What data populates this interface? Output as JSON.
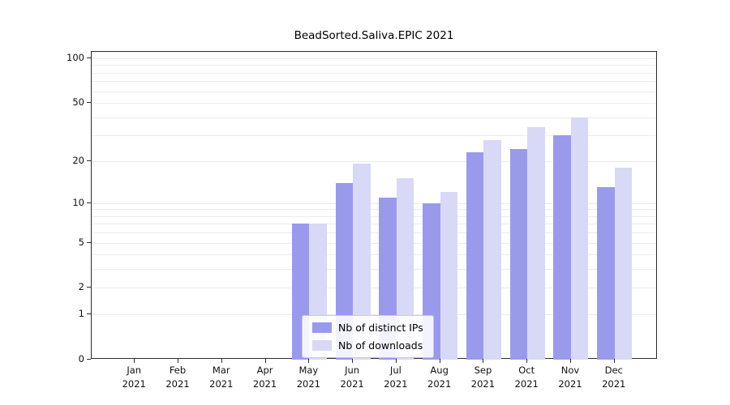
{
  "chart_data": {
    "type": "bar",
    "title": "BeadSorted.Saliva.EPIC 2021",
    "categories": [
      "Jan 2021",
      "Feb 2021",
      "Mar 2021",
      "Apr 2021",
      "May 2021",
      "Jun 2021",
      "Jul 2021",
      "Aug 2021",
      "Sep 2021",
      "Oct 2021",
      "Nov 2021",
      "Dec 2021"
    ],
    "series": [
      {
        "name": "Nb of distinct IPs",
        "color": "#9a9aec",
        "values": [
          0,
          0,
          0,
          0,
          7,
          14,
          11,
          10,
          23,
          24,
          30,
          13
        ]
      },
      {
        "name": "Nb of downloads",
        "color": "#d8d8f7",
        "values": [
          0,
          0,
          0,
          0,
          7,
          19,
          15,
          12,
          28,
          34,
          40,
          18
        ]
      }
    ],
    "yscale": "log10(1+x)",
    "yticks": [
      0,
      1,
      2,
      5,
      10,
      20,
      50,
      100
    ],
    "grid_values": [
      1,
      2,
      3,
      4,
      5,
      6,
      7,
      8,
      9,
      10,
      20,
      30,
      40,
      50,
      60,
      70,
      80,
      90,
      100
    ],
    "ylim": [
      0,
      110
    ],
    "grid": "horizontal",
    "legend_position": "lower-center"
  }
}
